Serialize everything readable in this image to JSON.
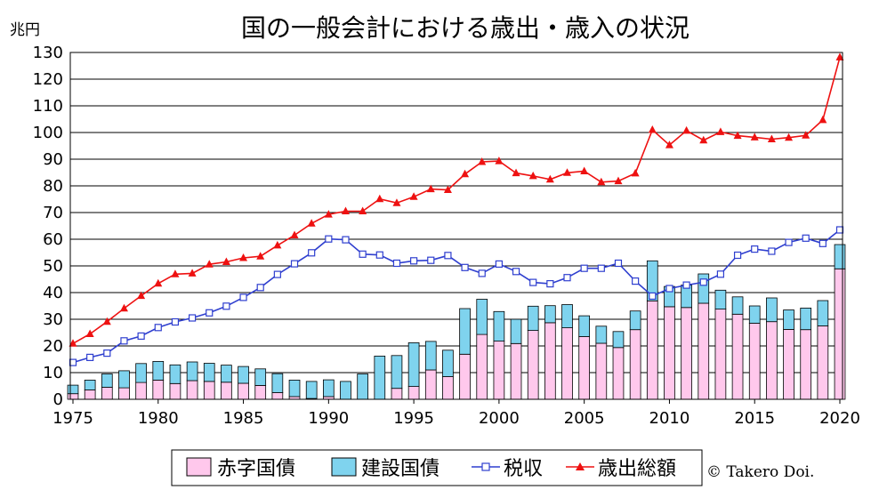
{
  "chart_data": {
    "type": "bar",
    "title": "国の一般会計における歳出・歳入の状況",
    "yunit": "兆円",
    "ylim": [
      0,
      130
    ],
    "yticks": [
      0,
      10,
      20,
      30,
      40,
      50,
      60,
      70,
      80,
      90,
      100,
      110,
      120,
      130
    ],
    "xticks": [
      1975,
      1980,
      1985,
      1990,
      1995,
      2000,
      2005,
      2010,
      2015,
      2020
    ],
    "grid": true,
    "stacked": true,
    "legend_position": "bottom",
    "x": [
      1975,
      1976,
      1977,
      1978,
      1979,
      1980,
      1981,
      1982,
      1983,
      1984,
      1985,
      1986,
      1987,
      1988,
      1989,
      1990,
      1991,
      1992,
      1993,
      1994,
      1995,
      1996,
      1997,
      1998,
      1999,
      2000,
      2001,
      2002,
      2003,
      2004,
      2005,
      2006,
      2007,
      2008,
      2009,
      2010,
      2011,
      2012,
      2013,
      2014,
      2015,
      2016,
      2017,
      2018,
      2019,
      2020
    ],
    "series": [
      {
        "name": "赤字国債",
        "kind": "bar",
        "color": "#ffc8ec",
        "values": [
          2.1,
          3.5,
          4.5,
          4.3,
          6.3,
          7.2,
          5.9,
          7.0,
          6.7,
          6.4,
          6.0,
          5.2,
          2.5,
          1.0,
          0.3,
          1.0,
          0.0,
          0.0,
          0.0,
          4.1,
          4.8,
          11.0,
          8.5,
          16.9,
          24.3,
          21.8,
          20.9,
          25.8,
          28.7,
          26.8,
          23.5,
          21.0,
          19.4,
          26.1,
          36.9,
          34.7,
          34.4,
          36.0,
          33.8,
          31.9,
          28.5,
          29.1,
          26.2,
          26.1,
          27.5,
          48.9
        ]
      },
      {
        "name": "建設国債",
        "kind": "bar",
        "color": "#7fd3ee",
        "values": [
          3.2,
          3.7,
          5.0,
          6.4,
          7.1,
          7.0,
          7.0,
          7.0,
          6.8,
          6.4,
          6.3,
          6.2,
          7.1,
          6.2,
          6.4,
          6.3,
          6.7,
          9.5,
          16.2,
          12.3,
          16.4,
          10.7,
          9.9,
          17.1,
          13.2,
          11.1,
          9.1,
          9.1,
          6.4,
          8.7,
          7.8,
          6.4,
          6.0,
          7.0,
          15.0,
          7.6,
          8.4,
          11.0,
          7.1,
          6.5,
          6.5,
          8.9,
          7.3,
          8.1,
          9.5,
          9.1
        ]
      },
      {
        "name": "税収",
        "kind": "line",
        "marker": "square",
        "color": "#2f3fcf",
        "values": [
          13.8,
          15.7,
          17.3,
          21.9,
          23.7,
          26.9,
          29.0,
          30.5,
          32.4,
          34.9,
          38.2,
          41.9,
          46.8,
          50.8,
          54.9,
          60.1,
          59.8,
          54.4,
          54.1,
          51.0,
          51.9,
          52.1,
          53.9,
          49.4,
          47.2,
          50.7,
          47.9,
          43.8,
          43.3,
          45.6,
          49.1,
          49.1,
          51.0,
          44.3,
          38.7,
          41.5,
          42.8,
          43.9,
          46.9,
          54.0,
          56.3,
          55.5,
          58.8,
          60.4,
          58.4,
          63.5
        ]
      },
      {
        "name": "歳出総額",
        "kind": "line",
        "marker": "triangle",
        "color": "#ee1111",
        "values": [
          20.9,
          24.5,
          29.1,
          34.1,
          38.8,
          43.4,
          46.9,
          47.2,
          50.6,
          51.5,
          53.0,
          53.6,
          57.7,
          61.5,
          65.9,
          69.3,
          70.5,
          70.5,
          75.1,
          73.6,
          75.9,
          78.8,
          78.5,
          84.4,
          89.0,
          89.3,
          84.8,
          83.7,
          82.4,
          84.9,
          85.5,
          81.4,
          81.8,
          84.7,
          101.0,
          95.3,
          100.7,
          97.1,
          100.2,
          98.8,
          98.2,
          97.5,
          98.1,
          98.9,
          104.7,
          128.2
        ]
      }
    ]
  },
  "credit": "© Takero Doi."
}
